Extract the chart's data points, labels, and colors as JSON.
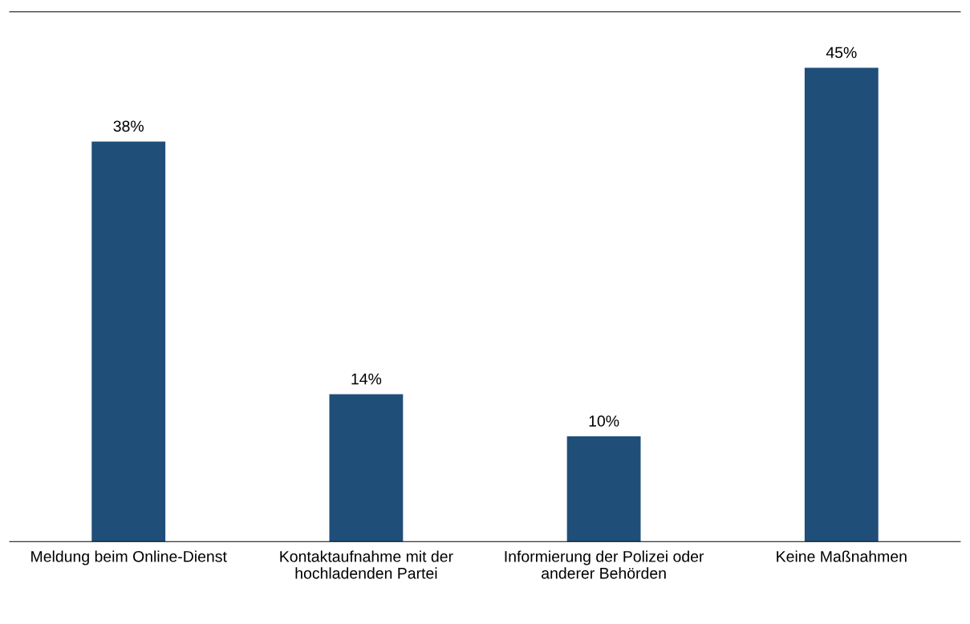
{
  "chart_data": {
    "type": "bar",
    "categories": [
      "Meldung beim Online-Dienst",
      "Kontaktaufnahme mit der\nhochladenden Partei",
      "Informierung der Polizei oder\nanderer Behörden",
      "Keine Maßnahmen"
    ],
    "values": [
      38,
      14,
      10,
      45
    ],
    "value_labels": [
      "38%",
      "14%",
      "10%",
      "45%"
    ],
    "color": "#1f4e79",
    "grid": false,
    "legend": false
  }
}
